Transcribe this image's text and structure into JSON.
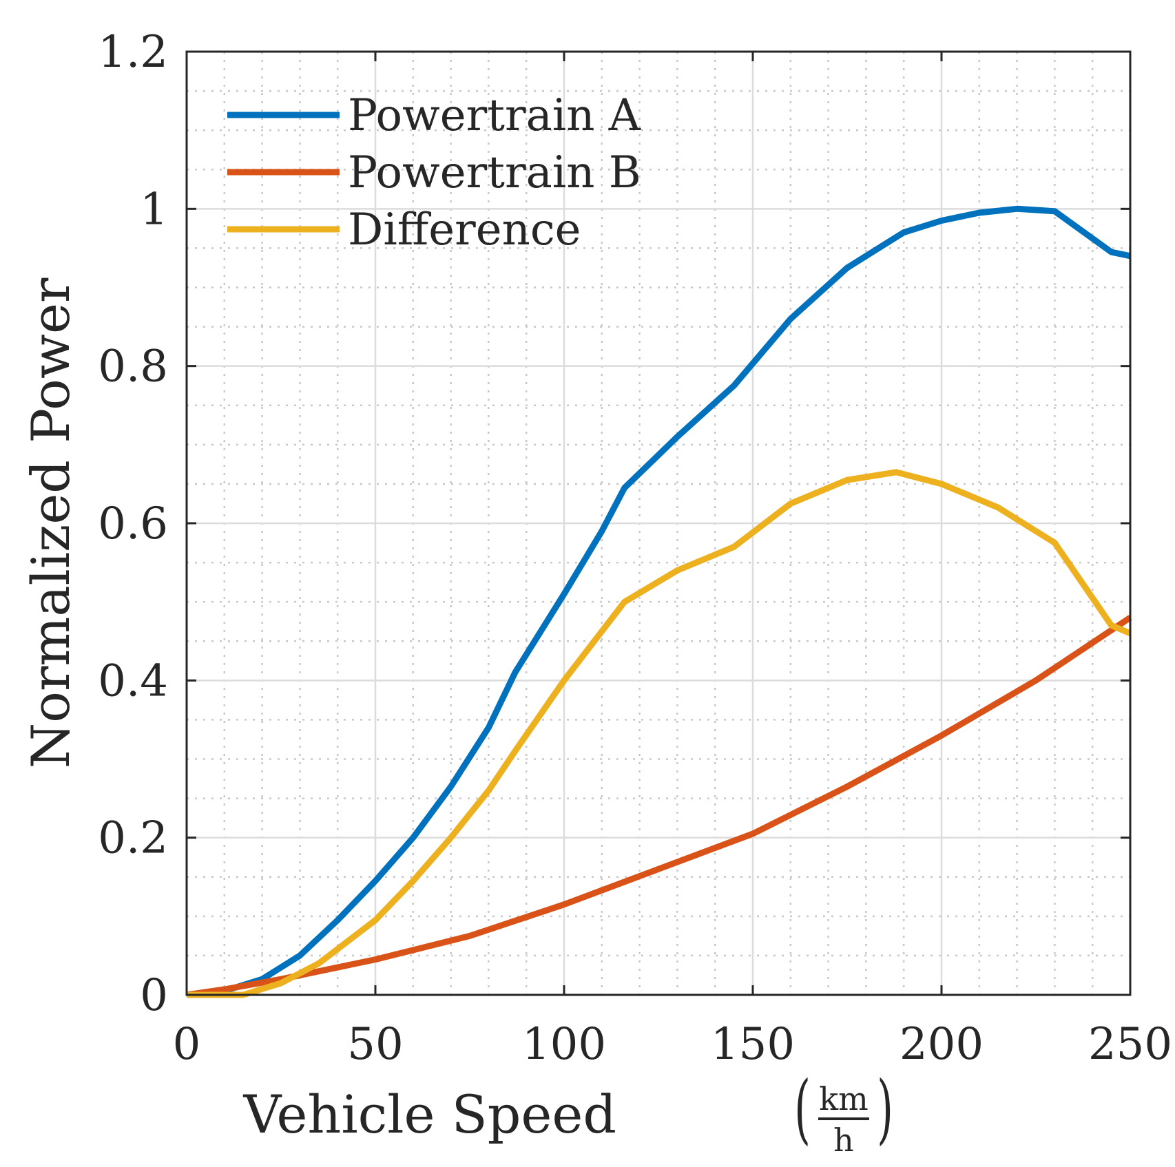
{
  "chart_data": {
    "type": "line",
    "title": "",
    "xlabel": "Vehicle Speed",
    "xlabel_unit_num": "km",
    "xlabel_unit_den": "h",
    "ylabel": "Normalized Power",
    "xlim": [
      0,
      250
    ],
    "ylim": [
      0,
      1.2
    ],
    "xticks": [
      0,
      50,
      100,
      150,
      200,
      250
    ],
    "xtick_labels": [
      "0",
      "50",
      "100",
      "150",
      "200",
      "250"
    ],
    "yticks": [
      0,
      0.2,
      0.4,
      0.6,
      0.8,
      1,
      1.2
    ],
    "ytick_labels": [
      "0",
      "0.2",
      "0.4",
      "0.6",
      "0.8",
      "1",
      "1.2"
    ],
    "grid": true,
    "minor_grid": true,
    "legend_position": "top-left",
    "series": [
      {
        "name": "Powertrain A",
        "color": "#0072BD",
        "x": [
          0,
          10,
          20,
          30,
          40,
          50,
          60,
          70,
          80,
          87,
          100,
          110,
          116,
          130,
          145,
          160,
          175,
          190,
          200,
          210,
          220,
          230,
          245,
          250
        ],
        "y": [
          0,
          0.005,
          0.02,
          0.05,
          0.095,
          0.145,
          0.2,
          0.265,
          0.34,
          0.41,
          0.51,
          0.59,
          0.645,
          0.71,
          0.775,
          0.86,
          0.925,
          0.97,
          0.985,
          0.995,
          1.0,
          0.997,
          0.945,
          0.94
        ]
      },
      {
        "name": "Powertrain B",
        "color": "#D95319",
        "x": [
          0,
          10,
          25,
          50,
          75,
          100,
          125,
          150,
          175,
          200,
          225,
          250
        ],
        "y": [
          0,
          0.007,
          0.02,
          0.045,
          0.075,
          0.115,
          0.16,
          0.205,
          0.265,
          0.33,
          0.4,
          0.48
        ]
      },
      {
        "name": "Difference",
        "color": "#EDB120",
        "x": [
          0,
          15,
          25,
          35,
          50,
          60,
          70,
          80,
          87,
          100,
          116,
          130,
          145,
          160,
          175,
          188,
          200,
          215,
          230,
          245,
          250
        ],
        "y": [
          0,
          0,
          0.015,
          0.04,
          0.095,
          0.145,
          0.2,
          0.26,
          0.31,
          0.4,
          0.5,
          0.54,
          0.57,
          0.625,
          0.655,
          0.665,
          0.65,
          0.62,
          0.575,
          0.47,
          0.46
        ]
      }
    ]
  }
}
